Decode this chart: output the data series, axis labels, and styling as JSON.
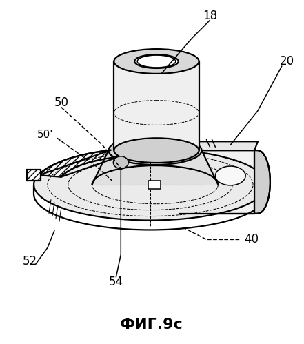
{
  "title": "ФИГ.9с",
  "title_fontsize": 16,
  "title_fontweight": "bold",
  "background_color": "#ffffff",
  "line_color": "#000000",
  "label_fontsize": 11
}
